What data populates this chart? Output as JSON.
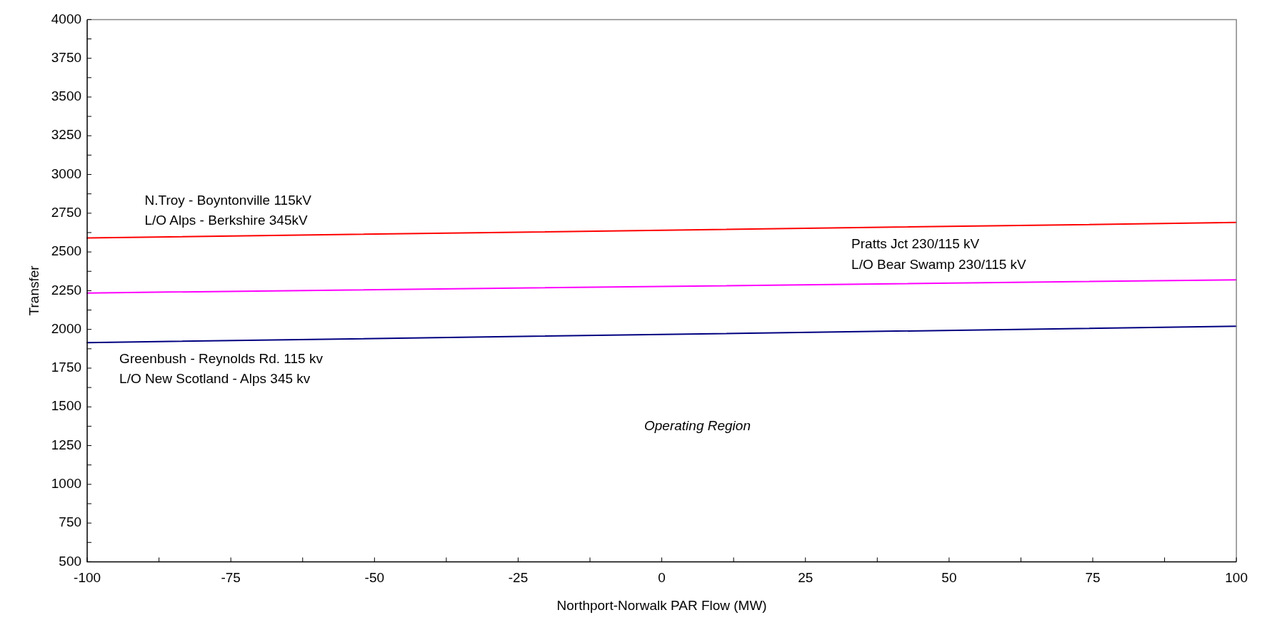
{
  "chart_data": {
    "type": "line",
    "xlabel": "Northport-Norwalk PAR Flow (MW)",
    "ylabel": "Transfer",
    "x": [
      -100,
      100
    ],
    "series": [
      {
        "color": "#ff0000",
        "values": [
          2590,
          2690
        ]
      },
      {
        "color": "#ff00ff",
        "values": [
          2235,
          2320
        ]
      },
      {
        "color": "#000080",
        "values": [
          1915,
          2020
        ]
      }
    ],
    "xlim": [
      -100,
      100
    ],
    "xticks": [
      -100,
      {
        "value": -87.5,
        "label": null
      },
      -75,
      {
        "value": -62.5,
        "label": null
      },
      -50,
      {
        "value": -37.5,
        "label": null
      },
      -25,
      {
        "value": -12.5,
        "label": null
      },
      0,
      {
        "value": 12.5,
        "label": null
      },
      25,
      {
        "value": 37.5,
        "label": null
      },
      50,
      {
        "value": 62.5,
        "label": null
      },
      75,
      {
        "value": 87.5,
        "label": null
      },
      100
    ],
    "ylim": [
      500,
      4000
    ],
    "yticks": [
      500,
      {
        "value": 625,
        "label": null
      },
      750,
      {
        "value": 875,
        "label": null
      },
      1000,
      {
        "value": 1125,
        "label": null
      },
      1250,
      {
        "value": 1375,
        "label": null
      },
      1500,
      {
        "value": 1625,
        "label": null
      },
      1750,
      {
        "value": 1875,
        "label": null
      },
      2000,
      {
        "value": 2125,
        "label": null
      },
      2250,
      {
        "value": 2375,
        "label": null
      },
      2500,
      {
        "value": 2625,
        "label": null
      },
      2750,
      {
        "value": 2875,
        "label": null
      },
      3000,
      {
        "value": 3125,
        "label": null
      },
      3250,
      {
        "value": 3375,
        "label": null
      },
      3500,
      {
        "value": 3625,
        "label": null
      },
      3750,
      {
        "value": 3875,
        "label": null
      },
      4000
    ],
    "grid": false,
    "legend": false,
    "marker": "none",
    "line_style": "solid",
    "annotations": [
      "N.Troy - Boyntonville 115kV",
      "L/O Alps - Berkshire 345kV",
      "Pratts Jct 230/115 kV",
      "L/O Bear Swamp 230/115 kV",
      "Greenbush - Reynolds Rd. 115 kv",
      "L/O New Scotland - Alps 345 kv",
      "Operating Region"
    ]
  }
}
